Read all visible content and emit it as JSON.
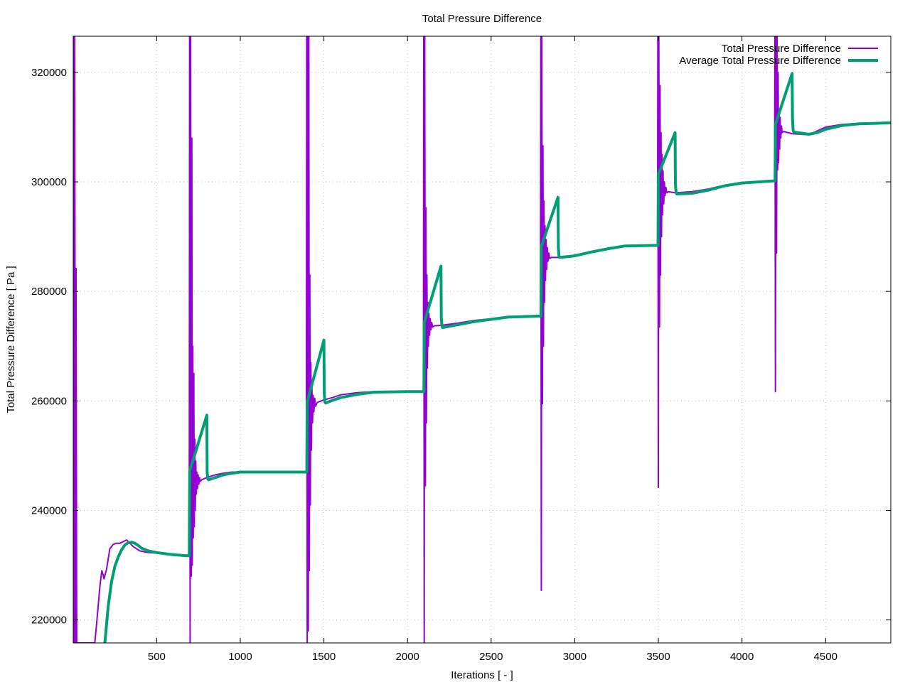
{
  "chart_data": {
    "type": "line",
    "title": "Total Pressure Difference",
    "xlabel": "Iterations [ - ]",
    "ylabel": "Total Pressure Difference [ Pa ]",
    "xlim": [
      1,
      4890
    ],
    "ylim": [
      215800,
      326600
    ],
    "x_ticks": [
      500,
      1000,
      1500,
      2000,
      2500,
      3000,
      3500,
      4000,
      4500
    ],
    "y_ticks": [
      220000,
      240000,
      260000,
      280000,
      300000,
      320000
    ],
    "grid": true,
    "legend_position": "top-right",
    "series": [
      {
        "name": "Total Pressure Difference",
        "color": "#9400d3",
        "line_width": 2,
        "points": [
          [
            1,
            326600
          ],
          [
            6,
            215800
          ],
          [
            10,
            326600
          ],
          [
            14,
            215800
          ],
          [
            18,
            284200
          ],
          [
            22,
            215800
          ],
          [
            30,
            215800
          ],
          [
            130,
            215800
          ],
          [
            140,
            219000
          ],
          [
            160,
            226000
          ],
          [
            172,
            229000
          ],
          [
            180,
            228200
          ],
          [
            185,
            227500
          ],
          [
            200,
            229200
          ],
          [
            220,
            233000
          ],
          [
            240,
            233800
          ],
          [
            260,
            234000
          ],
          [
            280,
            234000
          ],
          [
            300,
            234300
          ],
          [
            320,
            234600
          ],
          [
            340,
            234000
          ],
          [
            360,
            233400
          ],
          [
            380,
            233000
          ],
          [
            400,
            232600
          ],
          [
            450,
            232300
          ],
          [
            500,
            232200
          ],
          [
            550,
            232100
          ],
          [
            600,
            231900
          ],
          [
            650,
            231800
          ],
          [
            695,
            231700
          ],
          [
            697,
            326600
          ],
          [
            700,
            215800
          ],
          [
            703,
            326600
          ],
          [
            707,
            228000
          ],
          [
            710,
            308000
          ],
          [
            713,
            230000
          ],
          [
            716,
            270000
          ],
          [
            719,
            235000
          ],
          [
            722,
            265000
          ],
          [
            725,
            237000
          ],
          [
            728,
            253000
          ],
          [
            731,
            240000
          ],
          [
            734,
            249000
          ],
          [
            737,
            243000
          ],
          [
            740,
            247000
          ],
          [
            744,
            244000
          ],
          [
            748,
            246500
          ],
          [
            752,
            244800
          ],
          [
            756,
            246000
          ],
          [
            760,
            245300
          ],
          [
            770,
            245600
          ],
          [
            800,
            246000
          ],
          [
            850,
            246500
          ],
          [
            900,
            246800
          ],
          [
            950,
            247000
          ],
          [
            1000,
            247000
          ],
          [
            1100,
            247000
          ],
          [
            1200,
            247000
          ],
          [
            1300,
            247000
          ],
          [
            1395,
            247000
          ],
          [
            1397,
            326600
          ],
          [
            1400,
            215800
          ],
          [
            1403,
            326600
          ],
          [
            1407,
            218000
          ],
          [
            1410,
            326600
          ],
          [
            1413,
            229000
          ],
          [
            1416,
            283000
          ],
          [
            1419,
            241000
          ],
          [
            1422,
            267000
          ],
          [
            1425,
            251000
          ],
          [
            1428,
            263000
          ],
          [
            1432,
            256000
          ],
          [
            1436,
            261000
          ],
          [
            1440,
            258000
          ],
          [
            1445,
            260500
          ],
          [
            1450,
            259000
          ],
          [
            1460,
            259700
          ],
          [
            1500,
            260200
          ],
          [
            1550,
            260600
          ],
          [
            1600,
            261100
          ],
          [
            1700,
            261500
          ],
          [
            1800,
            261700
          ],
          [
            1900,
            261700
          ],
          [
            2000,
            261700
          ],
          [
            2095,
            261700
          ],
          [
            2097,
            326600
          ],
          [
            2100,
            215800
          ],
          [
            2103,
            326600
          ],
          [
            2107,
            244500
          ],
          [
            2110,
            295300
          ],
          [
            2113,
            256000
          ],
          [
            2116,
            283000
          ],
          [
            2119,
            266000
          ],
          [
            2122,
            278000
          ],
          [
            2125,
            270000
          ],
          [
            2128,
            276000
          ],
          [
            2132,
            272000
          ],
          [
            2136,
            275000
          ],
          [
            2140,
            273000
          ],
          [
            2145,
            274300
          ],
          [
            2150,
            273500
          ],
          [
            2160,
            273700
          ],
          [
            2200,
            273800
          ],
          [
            2300,
            274200
          ],
          [
            2400,
            274700
          ],
          [
            2500,
            275000
          ],
          [
            2600,
            275300
          ],
          [
            2700,
            275500
          ],
          [
            2795,
            275500
          ],
          [
            2797,
            326600
          ],
          [
            2800,
            225400
          ],
          [
            2803,
            326600
          ],
          [
            2807,
            259500
          ],
          [
            2810,
            306600
          ],
          [
            2813,
            270000
          ],
          [
            2816,
            296500
          ],
          [
            2819,
            278000
          ],
          [
            2822,
            292000
          ],
          [
            2825,
            282000
          ],
          [
            2828,
            289500
          ],
          [
            2832,
            284000
          ],
          [
            2836,
            288000
          ],
          [
            2840,
            285500
          ],
          [
            2845,
            287000
          ],
          [
            2850,
            286000
          ],
          [
            2860,
            286200
          ],
          [
            2900,
            286200
          ],
          [
            3000,
            286600
          ],
          [
            3100,
            287300
          ],
          [
            3200,
            287900
          ],
          [
            3300,
            288300
          ],
          [
            3400,
            288400
          ],
          [
            3495,
            288400
          ],
          [
            3497,
            326600
          ],
          [
            3500,
            244200
          ],
          [
            3503,
            326600
          ],
          [
            3507,
            273500
          ],
          [
            3510,
            317600
          ],
          [
            3513,
            283000
          ],
          [
            3516,
            309000
          ],
          [
            3519,
            290000
          ],
          [
            3522,
            305000
          ],
          [
            3525,
            294000
          ],
          [
            3528,
            302000
          ],
          [
            3532,
            296000
          ],
          [
            3536,
            300000
          ],
          [
            3540,
            297500
          ],
          [
            3545,
            299000
          ],
          [
            3550,
            298000
          ],
          [
            3560,
            298200
          ],
          [
            3600,
            298000
          ],
          [
            3700,
            298200
          ],
          [
            3800,
            298700
          ],
          [
            3900,
            299400
          ],
          [
            4000,
            299800
          ],
          [
            4100,
            300100
          ],
          [
            4195,
            300200
          ],
          [
            4197,
            326600
          ],
          [
            4200,
            261700
          ],
          [
            4203,
            326600
          ],
          [
            4207,
            287000
          ],
          [
            4210,
            326600
          ],
          [
            4213,
            302200
          ],
          [
            4216,
            320000
          ],
          [
            4219,
            303500
          ],
          [
            4222,
            313000
          ],
          [
            4225,
            306000
          ],
          [
            4228,
            311800
          ],
          [
            4232,
            308000
          ],
          [
            4236,
            310200
          ],
          [
            4240,
            309000
          ],
          [
            4250,
            309200
          ],
          [
            4300,
            308800
          ],
          [
            4400,
            308600
          ],
          [
            4450,
            309300
          ],
          [
            4500,
            310000
          ],
          [
            4600,
            310500
          ],
          [
            4700,
            310700
          ],
          [
            4800,
            310700
          ],
          [
            4890,
            310800
          ]
        ]
      },
      {
        "name": "Average Total Pressure Difference",
        "color": "#009e73",
        "line_width": 4,
        "points": [
          [
            190,
            215800
          ],
          [
            210,
            222500
          ],
          [
            230,
            227000
          ],
          [
            250,
            229800
          ],
          [
            270,
            231500
          ],
          [
            290,
            232800
          ],
          [
            310,
            233700
          ],
          [
            330,
            234100
          ],
          [
            350,
            234200
          ],
          [
            370,
            234000
          ],
          [
            390,
            233600
          ],
          [
            410,
            233100
          ],
          [
            450,
            232600
          ],
          [
            500,
            232300
          ],
          [
            550,
            232100
          ],
          [
            600,
            231900
          ],
          [
            650,
            231800
          ],
          [
            695,
            231700
          ],
          [
            698,
            247200
          ],
          [
            800,
            257400
          ],
          [
            802,
            247000
          ],
          [
            806,
            245700
          ],
          [
            810,
            245600
          ],
          [
            850,
            246000
          ],
          [
            900,
            246500
          ],
          [
            950,
            246800
          ],
          [
            1000,
            247000
          ],
          [
            1200,
            247000
          ],
          [
            1398,
            247000
          ],
          [
            1400,
            259800
          ],
          [
            1500,
            271100
          ],
          [
            1502,
            261400
          ],
          [
            1506,
            259800
          ],
          [
            1510,
            259600
          ],
          [
            1550,
            260100
          ],
          [
            1600,
            260600
          ],
          [
            1700,
            261200
          ],
          [
            1800,
            261600
          ],
          [
            2000,
            261700
          ],
          [
            2098,
            261700
          ],
          [
            2100,
            274300
          ],
          [
            2200,
            284600
          ],
          [
            2202,
            275200
          ],
          [
            2206,
            273600
          ],
          [
            2210,
            273400
          ],
          [
            2300,
            273900
          ],
          [
            2400,
            274500
          ],
          [
            2500,
            274900
          ],
          [
            2600,
            275300
          ],
          [
            2798,
            275500
          ],
          [
            2800,
            288200
          ],
          [
            2900,
            297200
          ],
          [
            2902,
            288000
          ],
          [
            2906,
            286400
          ],
          [
            2910,
            286200
          ],
          [
            3000,
            286500
          ],
          [
            3100,
            287200
          ],
          [
            3200,
            287800
          ],
          [
            3300,
            288300
          ],
          [
            3498,
            288400
          ],
          [
            3500,
            301400
          ],
          [
            3600,
            309000
          ],
          [
            3602,
            299500
          ],
          [
            3606,
            298100
          ],
          [
            3610,
            297800
          ],
          [
            3700,
            297900
          ],
          [
            3800,
            298500
          ],
          [
            3900,
            299300
          ],
          [
            4000,
            299800
          ],
          [
            4198,
            300200
          ],
          [
            4200,
            310500
          ],
          [
            4300,
            319800
          ],
          [
            4302,
            311500
          ],
          [
            4306,
            309400
          ],
          [
            4310,
            309100
          ],
          [
            4400,
            308700
          ],
          [
            4450,
            309000
          ],
          [
            4500,
            309600
          ],
          [
            4600,
            310300
          ],
          [
            4700,
            310600
          ],
          [
            4800,
            310700
          ],
          [
            4890,
            310800
          ]
        ]
      }
    ]
  }
}
